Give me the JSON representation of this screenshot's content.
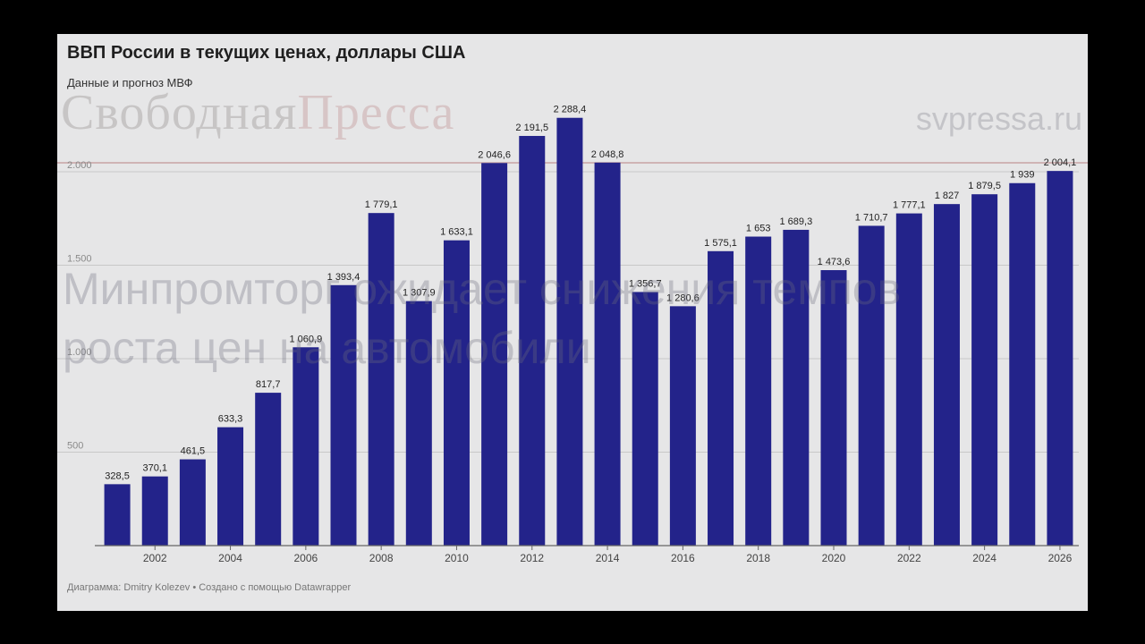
{
  "header": {
    "title": "ВВП России в текущих ценах, доллары США",
    "subtitle": "Данные и прогноз МВФ"
  },
  "watermarks": {
    "logo_part1": "Свободная",
    "logo_part2": "Пресса",
    "site": "svpressa.ru",
    "headline": "Минпромторг ожидает снижения темпов\nроста цен на автомобили"
  },
  "footer": {
    "credits": "Диаграмма: Dmitry Kolezev • Создано с помощью Datawrapper"
  },
  "colors": {
    "bar": "#23238a",
    "background": "#e6e6e7",
    "grid": "#c8c8c8",
    "axis": "#666666"
  },
  "chart_data": {
    "type": "bar",
    "title": "ВВП России в текущих ценах, доллары США",
    "subtitle": "Данные и прогноз МВФ",
    "xlabel": "",
    "ylabel": "",
    "ylim": [
      0,
      2000
    ],
    "yticks": [
      {
        "value": 500,
        "label": "500"
      },
      {
        "value": 1000,
        "label": "1.000"
      },
      {
        "value": 1500,
        "label": "1.500"
      },
      {
        "value": 2000,
        "label": "2.000"
      }
    ],
    "grid": true,
    "categories": [
      2001,
      2002,
      2003,
      2004,
      2005,
      2006,
      2007,
      2008,
      2009,
      2010,
      2011,
      2012,
      2013,
      2014,
      2015,
      2016,
      2017,
      2018,
      2019,
      2020,
      2021,
      2022,
      2023,
      2024,
      2025,
      2026
    ],
    "xtick_labels": [
      "",
      "2002",
      "",
      "2004",
      "",
      "2006",
      "",
      "2008",
      "",
      "2010",
      "",
      "2012",
      "",
      "2014",
      "",
      "2016",
      "",
      "2018",
      "",
      "2020",
      "",
      "2022",
      "",
      "2024",
      "",
      "2026"
    ],
    "values": [
      328.5,
      370.1,
      461.5,
      633.3,
      817.7,
      1060.9,
      1393.4,
      1779.1,
      1307.9,
      1633.1,
      2046.6,
      2191.5,
      2288.4,
      2048.8,
      1356.7,
      1280.6,
      1575.1,
      1653,
      1689.3,
      1473.6,
      1710.7,
      1777.1,
      1827,
      1879.5,
      1939,
      2004.1
    ],
    "value_labels": [
      "328,5",
      "370,1",
      "461,5",
      "633,3",
      "817,7",
      "1 060,9",
      "1 393,4",
      "1 779,1",
      "1 307,9",
      "1 633,1",
      "2 046,6",
      "2 191,5",
      "2 288,4",
      "2 048,8",
      "1 356,7",
      "1 280,6",
      "1 575,1",
      "1 653",
      "1 689,3",
      "1 473,6",
      "1 710,7",
      "1 777,1",
      "1 827",
      "1 879,5",
      "1 939",
      "2 004,1"
    ]
  }
}
